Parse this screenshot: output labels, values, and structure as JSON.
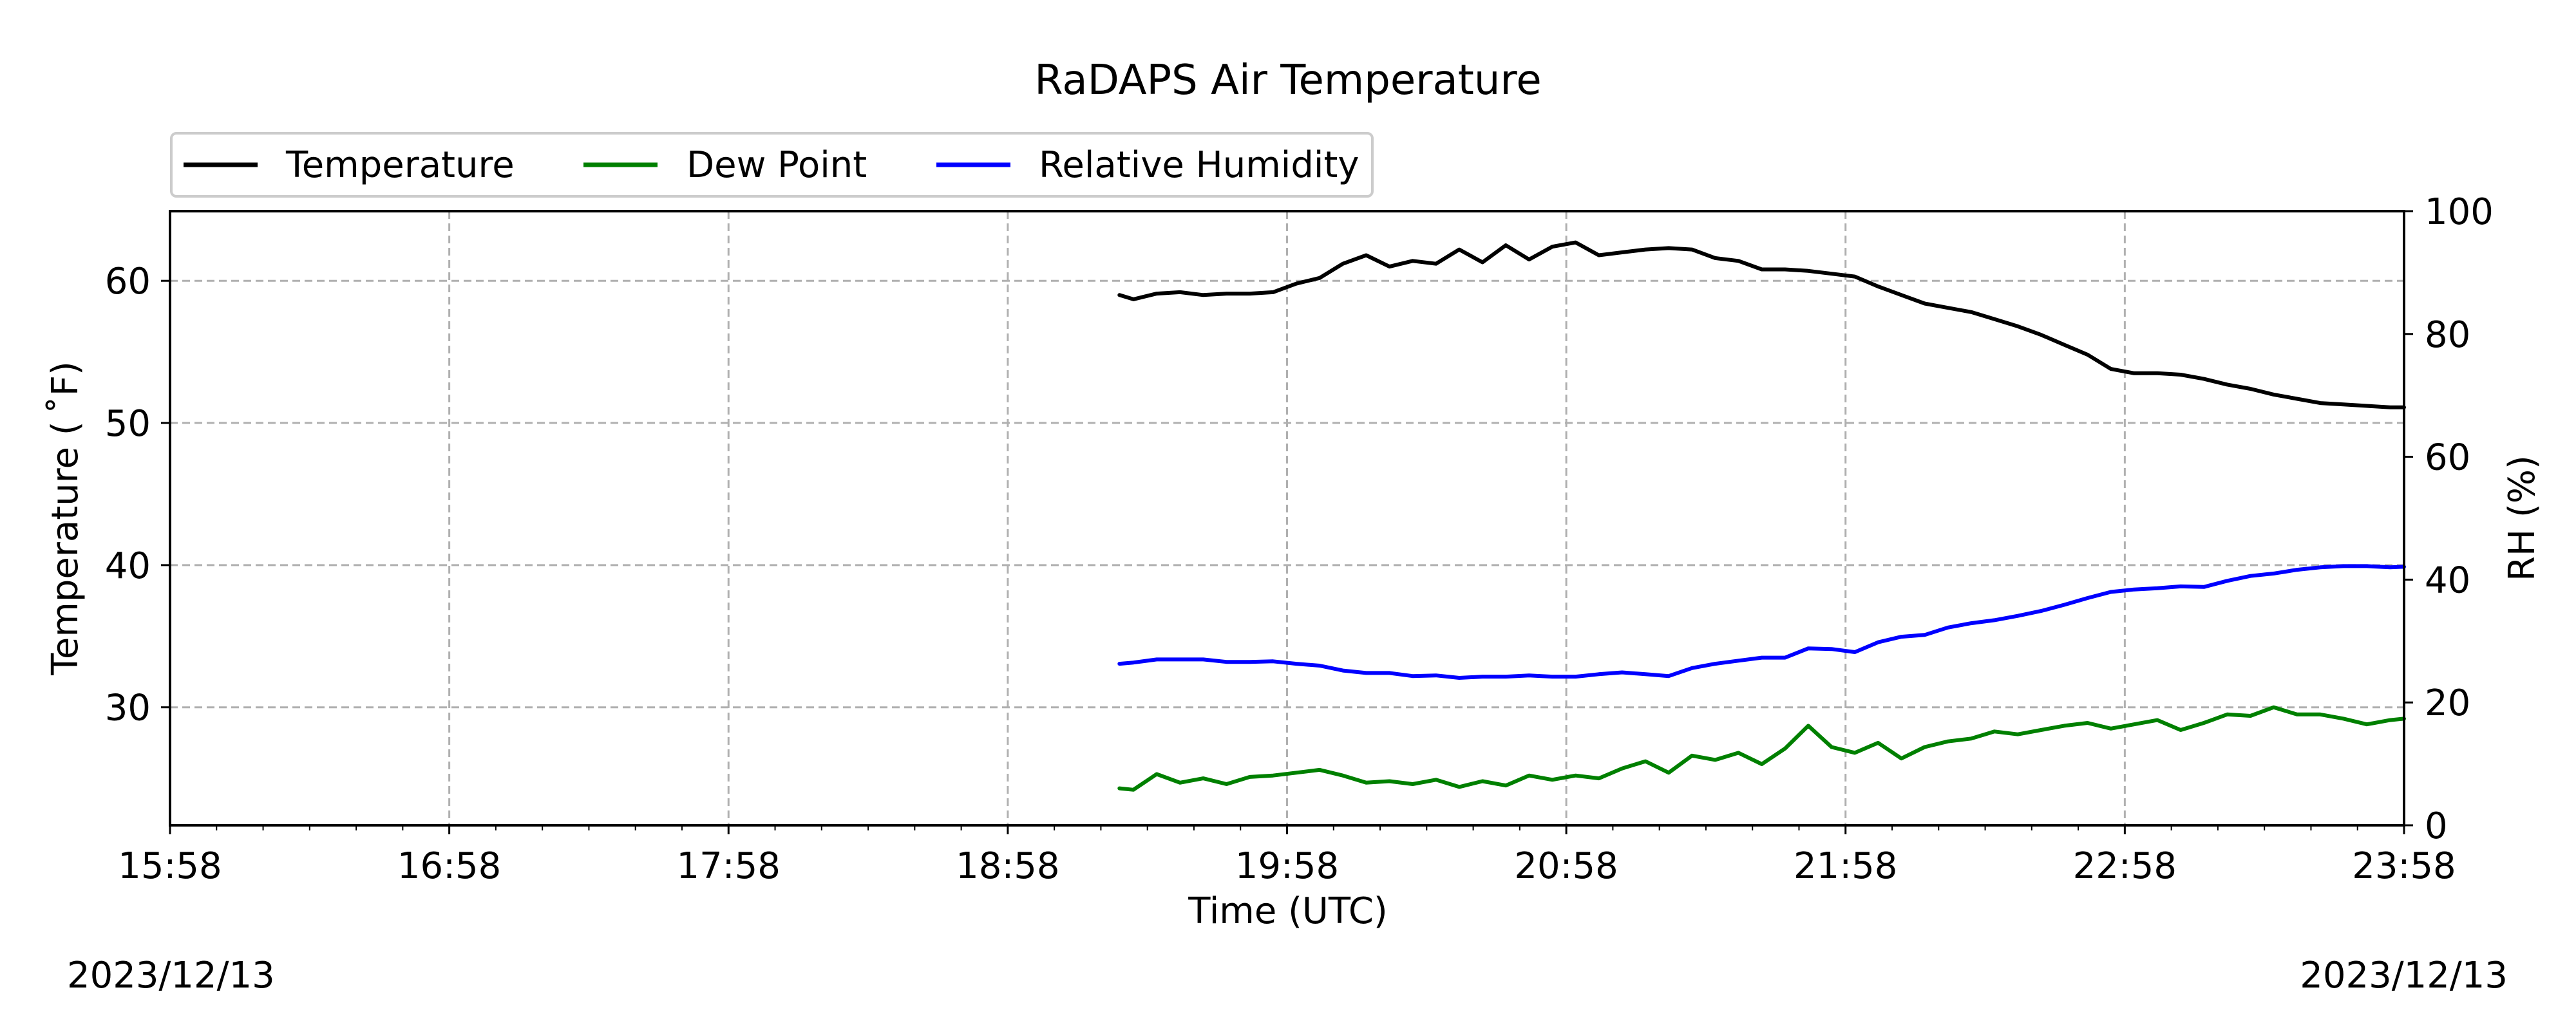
{
  "chart_data": {
    "type": "line",
    "title": "RaDAPS Air Temperature",
    "xlabel": "Time (UTC)",
    "ylabel": "Temperature ($^\\circ$F)",
    "ylabel_display": "Temperature ( ˚F)",
    "y2label": "RH (%)",
    "x_ticks": [
      "15:58",
      "16:58",
      "17:58",
      "18:58",
      "19:58",
      "20:58",
      "21:58",
      "22:58",
      "23:58"
    ],
    "xlim": [
      "15:58",
      "23:58"
    ],
    "ylim": [
      21.7,
      64.9
    ],
    "y_ticks": [
      30,
      40,
      50,
      60
    ],
    "y2lim": [
      0,
      100
    ],
    "y2_ticks": [
      0,
      20,
      40,
      60,
      80,
      100
    ],
    "grid": true,
    "legend_position": "above plot, top-left",
    "dates": {
      "start": "2023/12/13",
      "end": "2023/12/13"
    },
    "series": [
      {
        "name": "Temperature",
        "color": "#000000",
        "axis": "left",
        "x": [
          "19:22",
          "19:25",
          "19:30",
          "19:35",
          "19:40",
          "19:45",
          "19:50",
          "19:55",
          "20:00",
          "20:05",
          "20:10",
          "20:15",
          "20:20",
          "20:25",
          "20:30",
          "20:35",
          "20:40",
          "20:45",
          "20:50",
          "20:55",
          "21:00",
          "21:05",
          "21:10",
          "21:15",
          "21:20",
          "21:25",
          "21:30",
          "21:35",
          "21:40",
          "21:45",
          "21:50",
          "21:55",
          "22:00",
          "22:05",
          "22:10",
          "22:15",
          "22:20",
          "22:25",
          "22:30",
          "22:35",
          "22:40",
          "22:45",
          "22:50",
          "22:55",
          "23:00",
          "23:05",
          "23:10",
          "23:15",
          "23:20",
          "23:25",
          "23:30",
          "23:35",
          "23:40",
          "23:45",
          "23:50",
          "23:55",
          "23:58"
        ],
        "values": [
          59.0,
          58.7,
          59.1,
          59.2,
          59.0,
          59.1,
          59.1,
          59.2,
          59.8,
          60.2,
          61.2,
          61.8,
          61.0,
          61.4,
          61.2,
          62.2,
          61.3,
          62.5,
          61.5,
          62.4,
          62.7,
          61.8,
          62.0,
          62.2,
          62.3,
          62.2,
          61.6,
          61.4,
          60.8,
          60.8,
          60.7,
          60.5,
          60.3,
          59.6,
          59.0,
          58.4,
          58.1,
          57.8,
          57.3,
          56.8,
          56.2,
          55.5,
          54.8,
          53.8,
          53.5,
          53.5,
          53.4,
          53.1,
          52.7,
          52.4,
          52.0,
          51.7,
          51.4,
          51.3,
          51.2,
          51.1,
          51.1
        ]
      },
      {
        "name": "Dew Point",
        "color": "#008000",
        "axis": "left",
        "x": [
          "19:22",
          "19:25",
          "19:30",
          "19:35",
          "19:40",
          "19:45",
          "19:50",
          "19:55",
          "20:00",
          "20:05",
          "20:10",
          "20:15",
          "20:20",
          "20:25",
          "20:30",
          "20:35",
          "20:40",
          "20:45",
          "20:50",
          "20:55",
          "21:00",
          "21:05",
          "21:10",
          "21:15",
          "21:20",
          "21:25",
          "21:30",
          "21:35",
          "21:40",
          "21:45",
          "21:50",
          "21:55",
          "22:00",
          "22:05",
          "22:10",
          "22:15",
          "22:20",
          "22:25",
          "22:30",
          "22:35",
          "22:40",
          "22:45",
          "22:50",
          "22:55",
          "23:00",
          "23:05",
          "23:10",
          "23:15",
          "23:20",
          "23:25",
          "23:30",
          "23:35",
          "23:40",
          "23:45",
          "23:50",
          "23:55",
          "23:58"
        ],
        "values": [
          24.3,
          24.2,
          25.3,
          24.7,
          25.0,
          24.6,
          25.1,
          25.2,
          25.4,
          25.6,
          25.2,
          24.7,
          24.8,
          24.6,
          24.9,
          24.4,
          24.8,
          24.5,
          25.2,
          24.9,
          25.2,
          25.0,
          25.7,
          26.2,
          25.4,
          26.6,
          26.3,
          26.8,
          26.0,
          27.1,
          28.7,
          27.2,
          26.8,
          27.5,
          26.4,
          27.2,
          27.6,
          27.8,
          28.3,
          28.1,
          28.4,
          28.7,
          28.9,
          28.5,
          28.8,
          29.1,
          28.4,
          28.9,
          29.5,
          29.4,
          30.0,
          29.5,
          29.5,
          29.2,
          28.8,
          29.1,
          29.2
        ]
      },
      {
        "name": "Relative Humidity",
        "color": "#0000ff",
        "axis": "right",
        "x": [
          "19:22",
          "19:25",
          "19:30",
          "19:35",
          "19:40",
          "19:45",
          "19:50",
          "19:55",
          "20:00",
          "20:05",
          "20:10",
          "20:15",
          "20:20",
          "20:25",
          "20:30",
          "20:35",
          "20:40",
          "20:45",
          "20:50",
          "20:55",
          "21:00",
          "21:05",
          "21:10",
          "21:15",
          "21:20",
          "21:25",
          "21:30",
          "21:35",
          "21:40",
          "21:45",
          "21:50",
          "21:55",
          "22:00",
          "22:05",
          "22:10",
          "22:15",
          "22:20",
          "22:25",
          "22:30",
          "22:35",
          "22:40",
          "22:45",
          "22:50",
          "22:55",
          "23:00",
          "23:05",
          "23:10",
          "23:15",
          "23:20",
          "23:25",
          "23:30",
          "23:35",
          "23:40",
          "23:45",
          "23:50",
          "23:55",
          "23:58"
        ],
        "values": [
          26.3,
          26.5,
          27.0,
          27.0,
          27.0,
          26.6,
          26.6,
          26.7,
          26.3,
          26.0,
          25.2,
          24.8,
          24.8,
          24.3,
          24.4,
          24.0,
          24.2,
          24.2,
          24.4,
          24.2,
          24.2,
          24.6,
          24.9,
          24.6,
          24.3,
          25.6,
          26.3,
          26.8,
          27.3,
          27.3,
          28.8,
          28.7,
          28.2,
          29.8,
          30.7,
          31.0,
          32.2,
          32.9,
          33.4,
          34.1,
          34.9,
          35.9,
          37.0,
          38.0,
          38.4,
          38.6,
          38.9,
          38.8,
          39.8,
          40.6,
          41.0,
          41.6,
          42.0,
          42.2,
          42.2,
          42.0,
          42.1
        ]
      }
    ]
  }
}
